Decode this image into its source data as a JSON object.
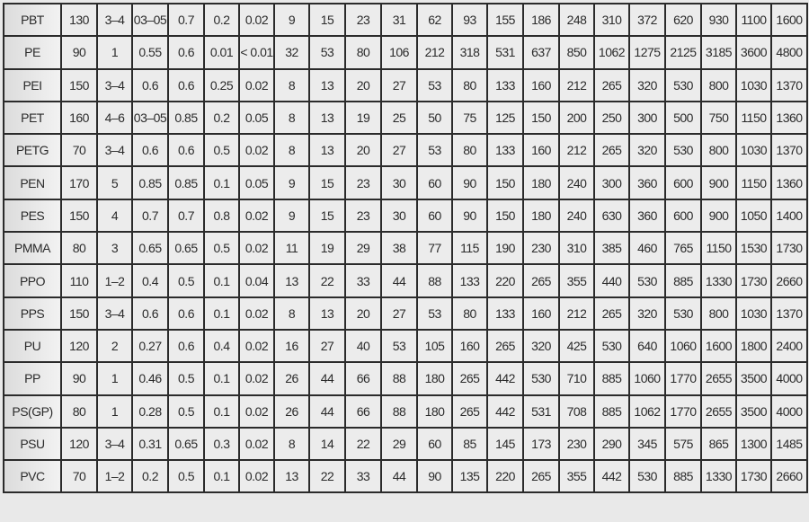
{
  "table": {
    "rows": [
      [
        "PBT",
        "130",
        "3–4",
        "03–05",
        "0.7",
        "0.2",
        "0.02",
        "9",
        "15",
        "23",
        "31",
        "62",
        "93",
        "155",
        "186",
        "248",
        "310",
        "372",
        "620",
        "930",
        "1100",
        "1600"
      ],
      [
        "PE",
        "90",
        "1",
        "0.55",
        "0.6",
        "0.01",
        "< 0.01",
        "32",
        "53",
        "80",
        "106",
        "212",
        "318",
        "531",
        "637",
        "850",
        "1062",
        "1275",
        "2125",
        "3185",
        "3600",
        "4800"
      ],
      [
        "PEI",
        "150",
        "3–4",
        "0.6",
        "0.6",
        "0.25",
        "0.02",
        "8",
        "13",
        "20",
        "27",
        "53",
        "80",
        "133",
        "160",
        "212",
        "265",
        "320",
        "530",
        "800",
        "1030",
        "1370"
      ],
      [
        "PET",
        "160",
        "4–6",
        "03–05",
        "0.85",
        "0.2",
        "0.05",
        "8",
        "13",
        "19",
        "25",
        "50",
        "75",
        "125",
        "150",
        "200",
        "250",
        "300",
        "500",
        "750",
        "1150",
        "1360"
      ],
      [
        "PETG",
        "70",
        "3–4",
        "0.6",
        "0.6",
        "0.5",
        "0.02",
        "8",
        "13",
        "20",
        "27",
        "53",
        "80",
        "133",
        "160",
        "212",
        "265",
        "320",
        "530",
        "800",
        "1030",
        "1370"
      ],
      [
        "PEN",
        "170",
        "5",
        "0.85",
        "0.85",
        "0.1",
        "0.05",
        "9",
        "15",
        "23",
        "30",
        "60",
        "90",
        "150",
        "180",
        "240",
        "300",
        "360",
        "600",
        "900",
        "1150",
        "1360"
      ],
      [
        "PES",
        "150",
        "4",
        "0.7",
        "0.7",
        "0.8",
        "0.02",
        "9",
        "15",
        "23",
        "30",
        "60",
        "90",
        "150",
        "180",
        "240",
        "630",
        "360",
        "600",
        "900",
        "1050",
        "1400"
      ],
      [
        "PMMA",
        "80",
        "3",
        "0.65",
        "0.65",
        "0.5",
        "0.02",
        "11",
        "19",
        "29",
        "38",
        "77",
        "115",
        "190",
        "230",
        "310",
        "385",
        "460",
        "765",
        "1150",
        "1530",
        "1730"
      ],
      [
        "PPO",
        "110",
        "1–2",
        "0.4",
        "0.5",
        "0.1",
        "0.04",
        "13",
        "22",
        "33",
        "44",
        "88",
        "133",
        "220",
        "265",
        "355",
        "440",
        "530",
        "885",
        "1330",
        "1730",
        "2660"
      ],
      [
        "PPS",
        "150",
        "3–4",
        "0.6",
        "0.6",
        "0.1",
        "0.02",
        "8",
        "13",
        "20",
        "27",
        "53",
        "80",
        "133",
        "160",
        "212",
        "265",
        "320",
        "530",
        "800",
        "1030",
        "1370"
      ],
      [
        "PU",
        "120",
        "2",
        "0.27",
        "0.6",
        "0.4",
        "0.02",
        "16",
        "27",
        "40",
        "53",
        "105",
        "160",
        "265",
        "320",
        "425",
        "530",
        "640",
        "1060",
        "1600",
        "1800",
        "2400"
      ],
      [
        "PP",
        "90",
        "1",
        "0.46",
        "0.5",
        "0.1",
        "0.02",
        "26",
        "44",
        "66",
        "88",
        "180",
        "265",
        "442",
        "530",
        "710",
        "885",
        "1060",
        "1770",
        "2655",
        "3500",
        "4000"
      ],
      [
        "PS(GP)",
        "80",
        "1",
        "0.28",
        "0.5",
        "0.1",
        "0.02",
        "26",
        "44",
        "66",
        "88",
        "180",
        "265",
        "442",
        "531",
        "708",
        "885",
        "1062",
        "1770",
        "2655",
        "3500",
        "4000"
      ],
      [
        "PSU",
        "120",
        "3–4",
        "0.31",
        "0.65",
        "0.3",
        "0.02",
        "8",
        "14",
        "22",
        "29",
        "60",
        "85",
        "145",
        "173",
        "230",
        "290",
        "345",
        "575",
        "865",
        "1300",
        "1485"
      ],
      [
        "PVC",
        "70",
        "1–2",
        "0.2",
        "0.5",
        "0.1",
        "0.02",
        "13",
        "22",
        "33",
        "44",
        "90",
        "135",
        "220",
        "265",
        "355",
        "442",
        "530",
        "885",
        "1330",
        "1730",
        "2660"
      ]
    ]
  }
}
